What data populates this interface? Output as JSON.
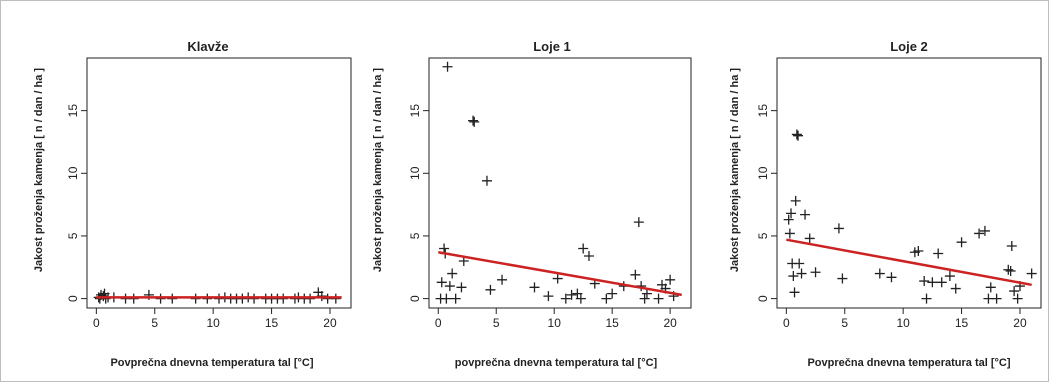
{
  "chart_data": [
    {
      "type": "scatter",
      "title": "Klavže",
      "xlabel": "Povprečna dnevna temperatura tal [°C]",
      "ylabel": "Jakost proženja kamenja [ n / dan / ha ]",
      "xlim": [
        -0.8,
        21.8
      ],
      "ylim": [
        -0.75,
        19.2
      ],
      "xticks": [
        0,
        5,
        10,
        15,
        20
      ],
      "yticks": [
        0,
        5,
        10,
        15
      ],
      "marker": "+",
      "points": [
        [
          0.2,
          0.1
        ],
        [
          0.4,
          0.3
        ],
        [
          0.6,
          0.2
        ],
        [
          0.8,
          0.0
        ],
        [
          1.0,
          0.1
        ],
        [
          0.3,
          0.0
        ],
        [
          1.5,
          0.1
        ],
        [
          0.7,
          0.4
        ],
        [
          2.5,
          0.0
        ],
        [
          3.2,
          0.0
        ],
        [
          4.5,
          0.3
        ],
        [
          5.5,
          0.0
        ],
        [
          6.5,
          0.0
        ],
        [
          8.5,
          0.0
        ],
        [
          9.5,
          0.0
        ],
        [
          10.5,
          0.0
        ],
        [
          11.0,
          0.1
        ],
        [
          11.5,
          0.0
        ],
        [
          12.0,
          0.0
        ],
        [
          12.5,
          0.0
        ],
        [
          13.0,
          0.1
        ],
        [
          13.5,
          0.0
        ],
        [
          14.5,
          0.0
        ],
        [
          15.0,
          0.0
        ],
        [
          15.5,
          0.0
        ],
        [
          16.0,
          0.0
        ],
        [
          17.0,
          0.0
        ],
        [
          17.3,
          0.1
        ],
        [
          17.8,
          0.0
        ],
        [
          18.3,
          0.0
        ],
        [
          19.0,
          0.5
        ],
        [
          19.3,
          0.2
        ],
        [
          19.8,
          0.0
        ],
        [
          20.5,
          0.0
        ]
      ],
      "trend": {
        "color": "#cc2222",
        "x": [
          0,
          21
        ],
        "y": [
          0.1,
          0.1
        ]
      }
    },
    {
      "type": "scatter",
      "title": "Loje 1",
      "xlabel": "povprečna dnevna temperatura tal [°C]",
      "ylabel": "Jakost proženja kamenja [ n / dan / ha ]",
      "xlim": [
        -0.8,
        21.8
      ],
      "ylim": [
        -0.75,
        19.2
      ],
      "xticks": [
        0,
        5,
        10,
        15,
        20
      ],
      "yticks": [
        0,
        5,
        10,
        15
      ],
      "marker": "+",
      "points": [
        [
          0.3,
          1.3
        ],
        [
          0.5,
          4.0
        ],
        [
          0.6,
          3.6
        ],
        [
          0.7,
          0.0
        ],
        [
          0.8,
          18.5
        ],
        [
          1.0,
          1.0
        ],
        [
          1.2,
          2.0
        ],
        [
          1.5,
          0.0
        ],
        [
          2.0,
          0.9
        ],
        [
          2.2,
          3.0
        ],
        [
          3.0,
          14.2
        ],
        [
          3.1,
          14.1
        ],
        [
          4.2,
          9.4
        ],
        [
          4.5,
          0.7
        ],
        [
          5.5,
          1.5
        ],
        [
          8.3,
          0.9
        ],
        [
          9.5,
          0.2
        ],
        [
          10.3,
          1.6
        ],
        [
          11.0,
          0.0
        ],
        [
          11.5,
          0.3
        ],
        [
          12.0,
          0.4
        ],
        [
          12.3,
          0.0
        ],
        [
          12.5,
          4.0
        ],
        [
          13.0,
          3.4
        ],
        [
          13.5,
          1.2
        ],
        [
          14.5,
          0.0
        ],
        [
          15.0,
          0.4
        ],
        [
          16.0,
          1.0
        ],
        [
          17.0,
          1.9
        ],
        [
          17.3,
          6.1
        ],
        [
          17.5,
          1.0
        ],
        [
          17.8,
          0.0
        ],
        [
          18.0,
          0.4
        ],
        [
          19.0,
          0.0
        ],
        [
          19.3,
          1.1
        ],
        [
          19.6,
          0.8
        ],
        [
          20.0,
          1.5
        ],
        [
          20.3,
          0.2
        ],
        [
          0.2,
          0.0
        ]
      ],
      "trend": {
        "color": "#cc2222",
        "x": [
          0,
          21
        ],
        "y": [
          3.7,
          0.3
        ]
      }
    },
    {
      "type": "scatter",
      "title": "Loje 2",
      "xlabel": "Povprečna dnevna temperatura tal [°C]",
      "ylabel": "Jakost proženja kamenja [ n / dan / ha ]",
      "xlim": [
        -0.8,
        21.8
      ],
      "ylim": [
        -0.75,
        19.2
      ],
      "xticks": [
        0,
        5,
        10,
        15,
        20
      ],
      "yticks": [
        0,
        5,
        10,
        15
      ],
      "marker": "+",
      "points": [
        [
          0.2,
          6.3
        ],
        [
          0.3,
          5.2
        ],
        [
          0.4,
          6.8
        ],
        [
          0.5,
          2.8
        ],
        [
          0.6,
          1.8
        ],
        [
          0.7,
          0.5
        ],
        [
          0.8,
          7.8
        ],
        [
          0.9,
          13.1
        ],
        [
          1.0,
          13.0
        ],
        [
          1.1,
          2.8
        ],
        [
          1.3,
          2.0
        ],
        [
          1.6,
          6.7
        ],
        [
          2.0,
          4.8
        ],
        [
          2.5,
          2.1
        ],
        [
          4.5,
          5.6
        ],
        [
          4.8,
          1.6
        ],
        [
          8.0,
          2.0
        ],
        [
          9.0,
          1.7
        ],
        [
          11.0,
          3.7
        ],
        [
          11.3,
          3.8
        ],
        [
          11.8,
          1.4
        ],
        [
          12.0,
          0.0
        ],
        [
          12.5,
          1.3
        ],
        [
          13.0,
          3.6
        ],
        [
          14.0,
          1.8
        ],
        [
          14.5,
          0.8
        ],
        [
          15.0,
          4.5
        ],
        [
          16.5,
          5.2
        ],
        [
          17.0,
          5.4
        ],
        [
          17.3,
          0.0
        ],
        [
          17.5,
          0.9
        ],
        [
          18.0,
          0.0
        ],
        [
          19.0,
          2.3
        ],
        [
          19.3,
          4.2
        ],
        [
          19.5,
          0.6
        ],
        [
          19.8,
          0.0
        ],
        [
          20.0,
          1.0
        ],
        [
          21.0,
          2.0
        ],
        [
          13.3,
          1.3
        ],
        [
          19.2,
          2.2
        ]
      ],
      "trend": {
        "color": "#cc2222",
        "x": [
          0,
          21
        ],
        "y": [
          4.7,
          1.1
        ]
      }
    }
  ]
}
